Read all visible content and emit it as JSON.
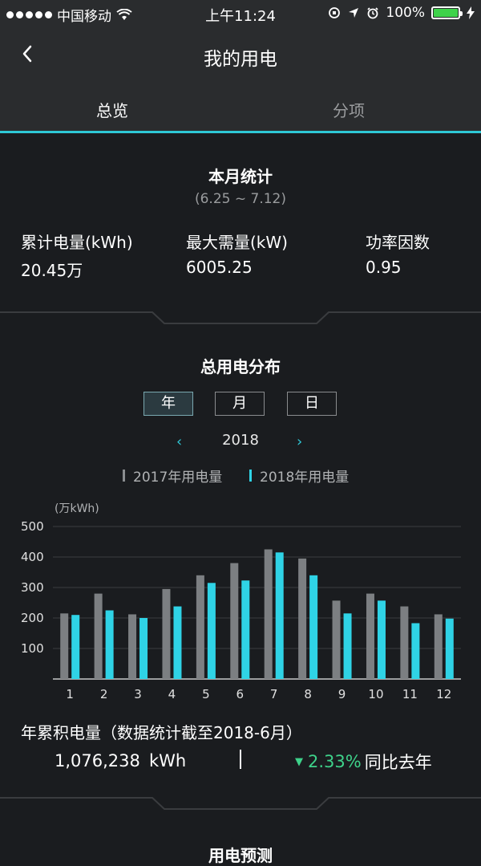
{
  "status_bar": {
    "carrier": "中国移动",
    "time": "上午11:24",
    "battery": "100%"
  },
  "nav": {
    "title": "我的用电"
  },
  "tabs": [
    {
      "label": "总览",
      "active": true
    },
    {
      "label": "分项",
      "active": false
    }
  ],
  "monthly": {
    "title": "本月统计",
    "range": "(6.25 ~ 7.12)",
    "stats": [
      {
        "label": "累计电量(kWh)",
        "value": "20.45万"
      },
      {
        "label": "最大需量(kW)",
        "value": "6005.25"
      },
      {
        "label": "功率因数",
        "value": "0.95"
      }
    ]
  },
  "distribution": {
    "title": "总用电分布",
    "segments": [
      {
        "label": "年",
        "active": true
      },
      {
        "label": "月",
        "active": false
      },
      {
        "label": "日",
        "active": false
      }
    ],
    "year": "2018"
  },
  "colors": {
    "accent": "#2ec8d6",
    "series_2017": "#7c7f82",
    "series_2018": "#2fd3e6",
    "positive": "#3ed28a"
  },
  "chart_data": {
    "type": "bar",
    "unit_label": "(万kWh)",
    "categories": [
      "1",
      "2",
      "3",
      "4",
      "5",
      "6",
      "7",
      "8",
      "9",
      "10",
      "11",
      "12"
    ],
    "series": [
      {
        "name": "2017年用电量",
        "values": [
          215,
          280,
          212,
          295,
          340,
          380,
          425,
          395,
          257,
          280,
          238,
          212
        ]
      },
      {
        "name": "2018年用电量",
        "values": [
          210,
          225,
          200,
          238,
          315,
          323,
          415,
          340,
          215,
          257,
          183,
          198
        ]
      }
    ],
    "yticks": [
      100,
      200,
      300,
      400,
      500
    ],
    "ylim": [
      0,
      500
    ],
    "grid": true,
    "legend": "top-center"
  },
  "annual": {
    "title": "年累积电量（数据统计截至2018-6月）",
    "value": "1,076,238",
    "unit": "kWh",
    "change_pct": "2.33%",
    "comparison": "同比去年"
  },
  "forecast": {
    "title": "用电预测"
  }
}
